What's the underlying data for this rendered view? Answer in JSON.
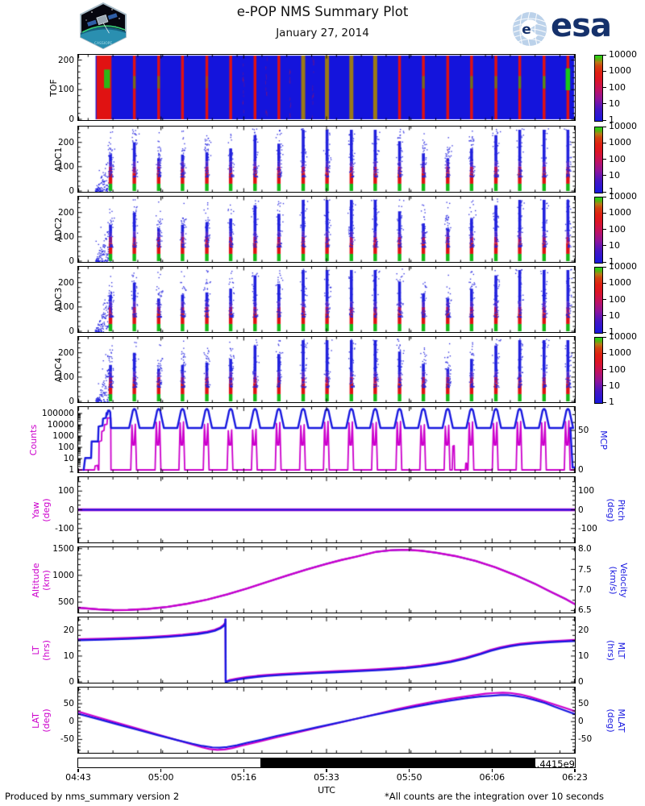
{
  "header": {
    "title": "e-POP NMS Summary Plot",
    "date": "January 27, 2014",
    "esa_wordmark": "esa",
    "patch_label": "CASSIOPE"
  },
  "footer": {
    "produced": "Produced by nms_summary version 2",
    "note": "*All counts are the integration over 10 seconds"
  },
  "x_axis": {
    "tick_labels": [
      "04:43",
      "05:00",
      "05:16",
      "05:33",
      "05:50",
      "06:06",
      "06:23"
    ],
    "unit_label": "UTC",
    "offset_label": "+1.4415e9",
    "total_minutes": 100,
    "minor_tick_minutes": 5
  },
  "colors": {
    "magenta": "#cc00cc",
    "line_blue": "#1818e0",
    "tof_blue": "#1414dc",
    "stripe_red": "#e01212",
    "stripe_olive": "#9c7a16",
    "green": "#18c818",
    "esa_navy": "#15316b",
    "frame": "#000000"
  },
  "colorbar": {
    "tick_labels": [
      "10000",
      "1000",
      "100",
      "10",
      "1"
    ],
    "gradient": [
      [
        "#1818dd",
        0
      ],
      [
        "#4416c4",
        18
      ],
      [
        "#8c149c",
        33
      ],
      [
        "#c01260",
        48
      ],
      [
        "#dc1428",
        62
      ],
      [
        "#e02012",
        74
      ],
      [
        "#d04410",
        84
      ],
      [
        "#b87a14",
        90
      ],
      [
        "#60aa10",
        94
      ],
      [
        "#22d816",
        100
      ]
    ]
  },
  "panels": [
    {
      "id": "tof",
      "left_label": "TOF",
      "left_color": "#000000",
      "left_ticks": [
        "0",
        "100",
        "200"
      ],
      "colorbar": true
    },
    {
      "id": "adc1",
      "left_label": "ADC1",
      "left_color": "#000000",
      "left_ticks": [
        "0",
        "100",
        "200"
      ],
      "colorbar": true
    },
    {
      "id": "adc2",
      "left_label": "ADC2",
      "left_color": "#000000",
      "left_ticks": [
        "0",
        "100",
        "200"
      ],
      "colorbar": true
    },
    {
      "id": "adc3",
      "left_label": "ADC3",
      "left_color": "#000000",
      "left_ticks": [
        "0",
        "100",
        "200"
      ],
      "colorbar": true
    },
    {
      "id": "adc4",
      "left_label": "ADC4",
      "left_color": "#000000",
      "left_ticks": [
        "0",
        "100",
        "200"
      ],
      "colorbar": true
    },
    {
      "id": "counts",
      "left_label": "Counts",
      "left_color": "#cc00cc",
      "left_ticks": [
        "1",
        "10",
        "100",
        "1000",
        "10000",
        "100000"
      ],
      "right_label": "MCP",
      "right_color": "#1818e0",
      "right_ticks": [
        "0",
        "50"
      ]
    },
    {
      "id": "yaw",
      "left_label": "Yaw\n(deg)",
      "left_color": "#cc00cc",
      "left_ticks": [
        "-100",
        "0",
        "100"
      ],
      "right_label": "Pitch\n(deg)",
      "right_color": "#1818e0",
      "right_ticks": [
        "-100",
        "0",
        "100"
      ]
    },
    {
      "id": "altitude",
      "left_label": "Altitude\n(km)",
      "left_color": "#cc00cc",
      "left_ticks": [
        "500",
        "1000",
        "1500"
      ],
      "right_label": "Velocity\n(km/s)",
      "right_color": "#1818e0",
      "right_ticks": [
        "6.5",
        "7.0",
        "7.5",
        "8.0"
      ]
    },
    {
      "id": "lt",
      "left_label": "LT\n(hrs)",
      "left_color": "#cc00cc",
      "left_ticks": [
        "0",
        "10",
        "20"
      ],
      "right_label": "MLT\n(hrs)",
      "right_color": "#1818e0",
      "right_ticks": [
        "0",
        "10",
        "20"
      ]
    },
    {
      "id": "lat",
      "left_label": "LAT\n(deg)",
      "left_color": "#cc00cc",
      "left_ticks": [
        "-50",
        "0",
        "50"
      ],
      "right_label": "MLAT\n(deg)",
      "right_color": "#1818e0",
      "right_ticks": [
        "-50",
        "0",
        "50"
      ]
    }
  ],
  "chart_data": {
    "type": "heatmap",
    "title": "e-POP NMS Summary Plot, January 27, 2014",
    "xlabel": "UTC",
    "x_range_hhmm": [
      "04:43",
      "06:23"
    ],
    "epoch_offset_seconds": "+1.4415e9",
    "stripe_minutes": [
      6.5,
      11.3,
      16.2,
      21.0,
      25.9,
      30.7,
      35.6,
      40.4,
      45.3,
      50.1,
      55.0,
      59.8,
      64.7,
      69.5,
      74.4,
      79.2,
      84.1,
      88.9,
      93.8,
      98.6
    ],
    "tof": {
      "yticks": [
        0,
        100,
        200
      ],
      "yrange": [
        0,
        215
      ],
      "turnon_band_minutes": [
        3.7,
        6.7
      ],
      "olive_stripe_indices": [
        8,
        9,
        10,
        11
      ],
      "green_spot_intensity": {
        "0": 0.95,
        "1": 0.5,
        "2": 0.45,
        "4": 0.25,
        "13": 0.5,
        "15": 0.55,
        "16": 0.5,
        "17": 0.6,
        "18": 0.7,
        "19": 1.0
      },
      "colorbar_ticks": [
        10000,
        1000,
        100,
        10,
        1
      ]
    },
    "adc": {
      "panels": [
        "ADC1",
        "ADC2",
        "ADC3",
        "ADC4"
      ],
      "yticks": [
        0,
        100,
        200
      ],
      "yrange": [
        0,
        262
      ],
      "ramp_minutes": [
        3.5,
        6.4
      ],
      "dense_top": [
        150,
        200,
        135,
        150,
        160,
        175,
        230,
        195,
        255,
        255,
        255,
        255,
        205,
        155,
        135,
        175,
        230,
        255,
        255,
        255
      ],
      "colorbar_ticks": [
        10000,
        1000,
        100,
        10,
        1
      ]
    },
    "counts_mcp": {
      "counts_log_ticks": [
        1,
        10,
        100,
        1000,
        10000,
        100000
      ],
      "spike_log10": [
        4.05,
        4.3,
        4.25,
        4.1,
        3.55,
        3.6,
        4.2,
        4.0,
        4.3,
        4.25,
        4.2,
        4.3,
        4.0,
        3.95,
        4.25,
        4.2,
        4.3,
        4.25,
        4.35
      ],
      "turnon_counts_steps": [
        [
          3.3,
          0
        ],
        [
          3.4,
          0.35
        ],
        [
          3.9,
          0.4
        ],
        [
          4.0,
          0
        ],
        [
          4.15,
          0
        ],
        [
          4.2,
          2.5
        ],
        [
          4.7,
          2.6
        ],
        [
          4.75,
          3.4
        ],
        [
          5.2,
          3.5
        ],
        [
          5.3,
          4.0
        ],
        [
          5.8,
          4.05
        ],
        [
          5.9,
          4.6
        ],
        [
          6.55,
          4.62
        ],
        [
          6.6,
          0
        ]
      ],
      "extra_small_spikes": [
        [
          75.3,
          0
        ],
        [
          75.45,
          2.1
        ],
        [
          75.7,
          2.15
        ],
        [
          75.8,
          0
        ],
        [
          77.95,
          0
        ],
        [
          78.05,
          0.6
        ],
        [
          78.2,
          0.6
        ],
        [
          78.3,
          0
        ]
      ],
      "mcp_ticks": [
        0,
        50
      ],
      "mcp_baseline": 53,
      "mcp_peak": 77,
      "turnon_mcp_steps": [
        [
          1.1,
          0
        ],
        [
          1.4,
          15
        ],
        [
          2.6,
          15
        ],
        [
          2.7,
          36
        ],
        [
          4.0,
          36
        ],
        [
          4.1,
          55
        ],
        [
          4.9,
          56
        ],
        [
          5.0,
          65
        ],
        [
          5.6,
          66
        ],
        [
          5.7,
          72
        ],
        [
          5.85,
          70
        ],
        [
          6.0,
          75
        ],
        [
          6.3,
          75
        ],
        [
          6.45,
          73
        ],
        [
          6.6,
          53
        ]
      ],
      "end_drop_minutes": [
        99.1,
        99.55
      ]
    },
    "yaw_pitch": {
      "yaw_deg": 0,
      "pitch_deg": 0,
      "yticks": [
        -100,
        0,
        100
      ]
    },
    "altitude_velocity": {
      "alt_ticks_km": [
        500,
        1000,
        1500
      ],
      "vel_ticks_kms": [
        6.5,
        7.0,
        7.5,
        8.0
      ],
      "alt_points_min_km": [
        [
          0,
          395
        ],
        [
          4,
          365
        ],
        [
          7,
          351
        ],
        [
          10,
          353
        ],
        [
          14,
          372
        ],
        [
          18,
          412
        ],
        [
          22,
          470
        ],
        [
          26,
          548
        ],
        [
          30,
          645
        ],
        [
          34,
          755
        ],
        [
          38,
          875
        ],
        [
          42,
          995
        ],
        [
          46,
          1110
        ],
        [
          50,
          1215
        ],
        [
          53,
          1288
        ],
        [
          56,
          1350
        ],
        [
          58,
          1395
        ],
        [
          60,
          1440
        ],
        [
          63,
          1470
        ],
        [
          66,
          1478
        ],
        [
          69,
          1462
        ],
        [
          72,
          1425
        ],
        [
          76,
          1360
        ],
        [
          80,
          1270
        ],
        [
          84,
          1150
        ],
        [
          88,
          1005
        ],
        [
          92,
          840
        ],
        [
          95,
          700
        ],
        [
          98,
          565
        ],
        [
          100,
          462
        ]
      ]
    },
    "lt_mlt": {
      "yticks": [
        0,
        10,
        20
      ],
      "lt_minus_mlt_offset_hrs": 0.4,
      "points_min_hr": [
        [
          0,
          16.1
        ],
        [
          5,
          16.35
        ],
        [
          10,
          16.65
        ],
        [
          14,
          17.0
        ],
        [
          18,
          17.45
        ],
        [
          21,
          17.9
        ],
        [
          24,
          18.5
        ],
        [
          26,
          19.1
        ],
        [
          27.5,
          19.8
        ],
        [
          28.6,
          20.7
        ],
        [
          29.3,
          21.7
        ],
        [
          29.6,
          22.6
        ],
        [
          29.65,
          24.2
        ],
        [
          29.7,
          0
        ],
        [
          30.5,
          0.35
        ],
        [
          32,
          0.9
        ],
        [
          34,
          1.5
        ],
        [
          36,
          1.95
        ],
        [
          38,
          2.3
        ],
        [
          41,
          2.7
        ],
        [
          44,
          3.0
        ],
        [
          48,
          3.4
        ],
        [
          52,
          3.75
        ],
        [
          56,
          4.1
        ],
        [
          60,
          4.5
        ],
        [
          63,
          4.85
        ],
        [
          66,
          5.3
        ],
        [
          69,
          5.9
        ],
        [
          72,
          6.7
        ],
        [
          75,
          7.7
        ],
        [
          78,
          9.0
        ],
        [
          81,
          10.7
        ],
        [
          83,
          12.0
        ],
        [
          85,
          13.0
        ],
        [
          87,
          13.8
        ],
        [
          89,
          14.4
        ],
        [
          92,
          14.95
        ],
        [
          95,
          15.35
        ],
        [
          98,
          15.65
        ],
        [
          100,
          15.85
        ]
      ]
    },
    "lat_mlat": {
      "yticks": [
        -50,
        0,
        50
      ],
      "lat_points_min_deg": [
        [
          0,
          28
        ],
        [
          4,
          12
        ],
        [
          8,
          -4
        ],
        [
          12,
          -20
        ],
        [
          16,
          -36
        ],
        [
          20,
          -52
        ],
        [
          23,
          -64
        ],
        [
          25,
          -72
        ],
        [
          26.5,
          -77
        ],
        [
          28,
          -79
        ],
        [
          29.5,
          -78
        ],
        [
          31,
          -74
        ],
        [
          33,
          -67
        ],
        [
          36,
          -57
        ],
        [
          40,
          -44
        ],
        [
          44,
          -31
        ],
        [
          48,
          -18
        ],
        [
          52,
          -5
        ],
        [
          56,
          8
        ],
        [
          60,
          21
        ],
        [
          64,
          34
        ],
        [
          68,
          46
        ],
        [
          72,
          57
        ],
        [
          75,
          64
        ],
        [
          78,
          70
        ],
        [
          80,
          74
        ],
        [
          82,
          78
        ],
        [
          84,
          80
        ],
        [
          85.5,
          81
        ],
        [
          87,
          80
        ],
        [
          89,
          76
        ],
        [
          91,
          69
        ],
        [
          93,
          61
        ],
        [
          95,
          52
        ],
        [
          97,
          43
        ],
        [
          99,
          34
        ],
        [
          100,
          29
        ]
      ],
      "mlat_points_min_deg": [
        [
          0,
          22
        ],
        [
          4,
          7
        ],
        [
          8,
          -8
        ],
        [
          12,
          -23
        ],
        [
          16,
          -38
        ],
        [
          20,
          -52
        ],
        [
          23,
          -62
        ],
        [
          25,
          -68
        ],
        [
          27,
          -72
        ],
        [
          28.5,
          -73
        ],
        [
          30,
          -71
        ],
        [
          32,
          -66
        ],
        [
          34,
          -59
        ],
        [
          37,
          -50
        ],
        [
          40,
          -40
        ],
        [
          44,
          -28
        ],
        [
          48,
          -16
        ],
        [
          52,
          -4
        ],
        [
          56,
          8
        ],
        [
          60,
          20
        ],
        [
          64,
          31
        ],
        [
          68,
          42
        ],
        [
          72,
          52
        ],
        [
          75,
          59
        ],
        [
          78,
          65
        ],
        [
          81,
          70
        ],
        [
          83,
          72
        ],
        [
          85,
          74
        ],
        [
          86.5,
          74
        ],
        [
          88,
          72
        ],
        [
          90,
          67
        ],
        [
          92,
          60
        ],
        [
          94,
          52
        ],
        [
          96,
          41
        ],
        [
          98,
          31
        ],
        [
          100,
          21
        ]
      ]
    },
    "eclipse_bar": {
      "black_start_minute": 36.8,
      "black_end_minute": 92.1
    }
  }
}
